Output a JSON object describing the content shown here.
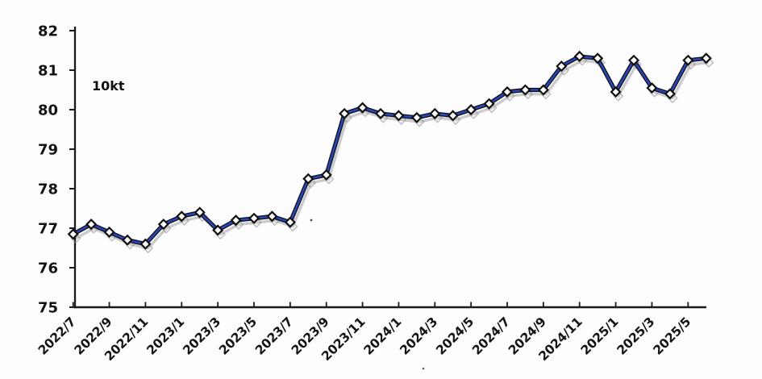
{
  "chart_data": {
    "type": "line",
    "title": "",
    "unit_label": "10kt",
    "x": [
      "2022/7",
      "2022/8",
      "2022/9",
      "2022/10",
      "2022/11",
      "2022/12",
      "2023/1",
      "2023/2",
      "2023/3",
      "2023/4",
      "2023/5",
      "2023/6",
      "2023/7",
      "2023/8",
      "2023/9",
      "2023/10",
      "2023/11",
      "2023/12",
      "2024/1",
      "2024/2",
      "2024/3",
      "2024/4",
      "2024/5",
      "2024/6",
      "2024/7",
      "2024/8",
      "2024/9",
      "2024/10",
      "2024/11",
      "2024/12",
      "2025/1",
      "2025/2",
      "2025/3",
      "2025/4",
      "2025/5",
      "2025/6"
    ],
    "values": [
      76.85,
      77.1,
      76.9,
      76.7,
      76.6,
      77.1,
      77.3,
      77.4,
      76.95,
      77.2,
      77.25,
      77.3,
      77.15,
      78.25,
      78.35,
      79.9,
      80.05,
      79.9,
      79.85,
      79.8,
      79.9,
      79.85,
      80.0,
      80.15,
      80.45,
      80.5,
      80.5,
      81.1,
      81.35,
      81.3,
      80.45,
      81.25,
      80.55,
      80.4,
      81.25,
      81.3
    ],
    "x_tick_labels": [
      "2022/7",
      "2022/9",
      "2022/11",
      "2023/1",
      "2023/3",
      "2023/5",
      "2023/7",
      "2023/9",
      "2023/11",
      "2024/1",
      "2024/3",
      "2024/5",
      "2024/7",
      "2024/9",
      "2024/11",
      "2025/1",
      "2025/3",
      "2025/5"
    ],
    "y_ticks": [
      75,
      76,
      77,
      78,
      79,
      80,
      81,
      82
    ],
    "ylim": [
      75,
      82
    ],
    "xlabel": "",
    "ylabel": "",
    "legend": "none",
    "grid": "off",
    "line_color": "#2946b1",
    "line_edge_color": "#10101c",
    "marker_shape": "diamond",
    "marker_fill": "#ffffff",
    "marker_stroke": "#101010",
    "ghost_color": "#9a9aa0",
    "axis_color": "#1a1a1a"
  }
}
